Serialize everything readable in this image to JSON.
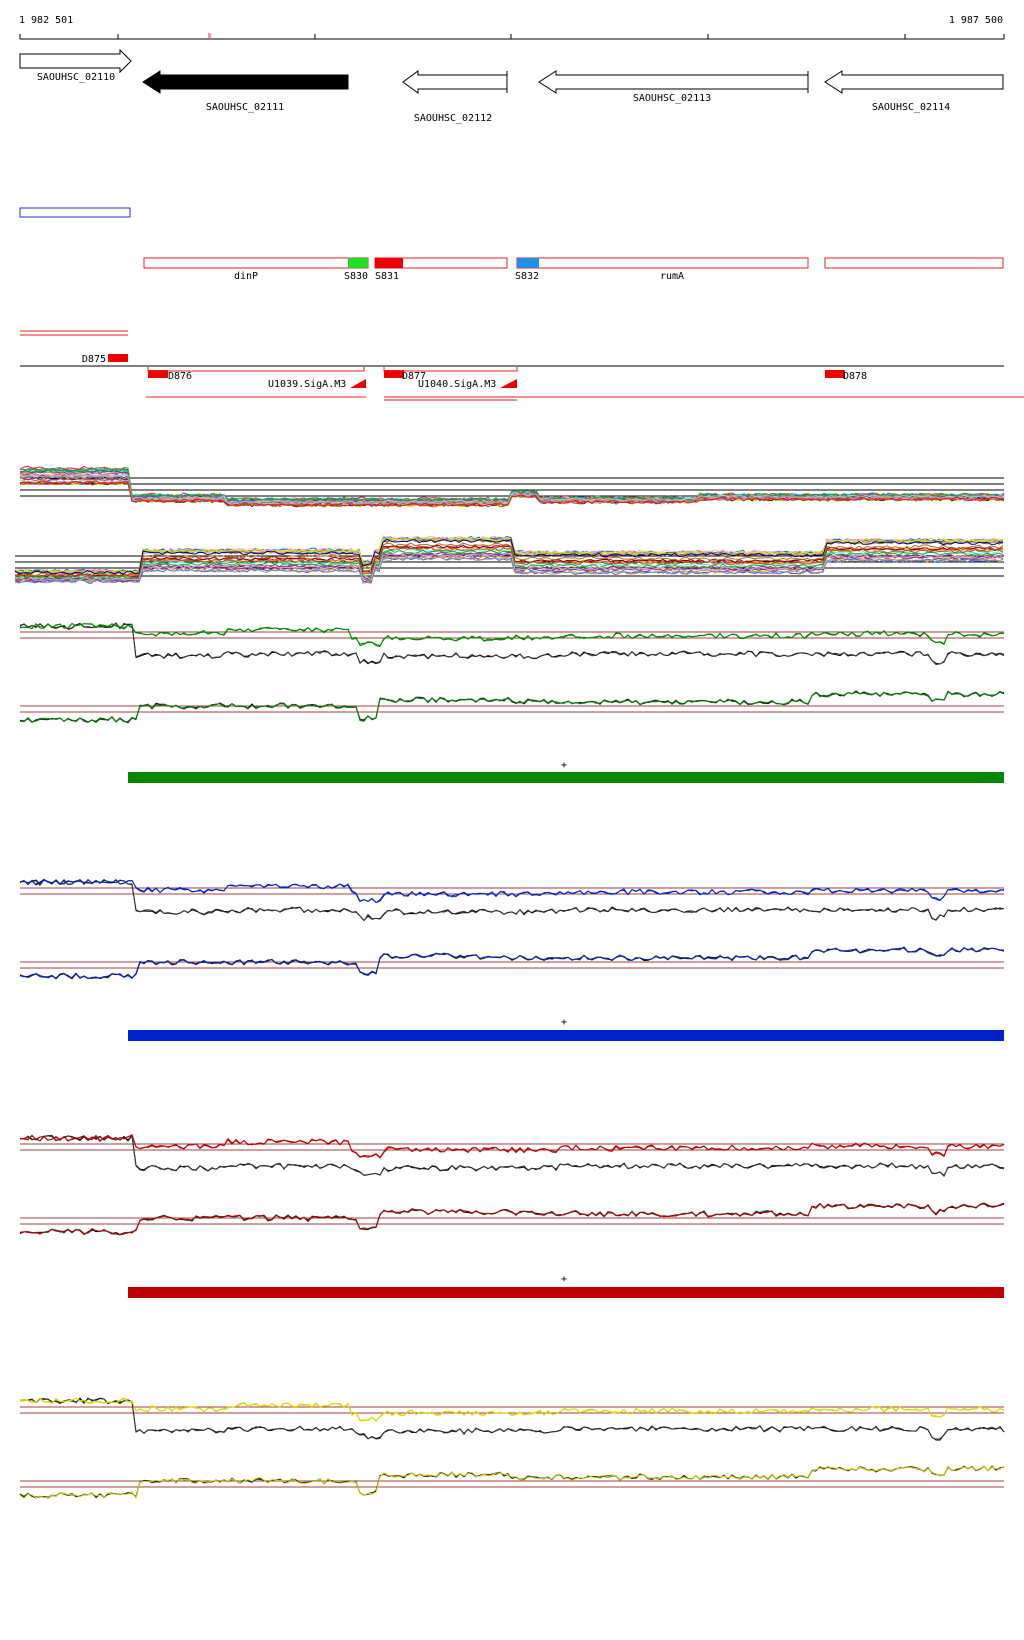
{
  "ruler": {
    "start_label": "1 982 501",
    "end_label": "1 987 500"
  },
  "genes": [
    {
      "name": "SAOUHSC_02110",
      "strand": "+",
      "fill": "#ffffff"
    },
    {
      "name": "SAOUHSC_02111",
      "strand": "-",
      "fill": "#000000"
    },
    {
      "name": "SAOUHSC_02112",
      "strand": "-",
      "fill": "#ffffff"
    },
    {
      "name": "SAOUHSC_02113",
      "strand": "-",
      "fill": "#ffffff"
    },
    {
      "name": "SAOUHSC_02114",
      "strand": "-",
      "fill": "#ffffff"
    }
  ],
  "segments": {
    "labels": [
      "dinP",
      "S830",
      "S831",
      "S832",
      "rumA"
    ],
    "colors": {
      "S830": "#22dd22",
      "S831": "#ee0000",
      "S832": "#1e90e8",
      "outline": "#ee2222"
    }
  },
  "features": {
    "markers": [
      "D875",
      "D876",
      "D877",
      "D878"
    ],
    "utrs": [
      "U1039.SigA.M3",
      "U1040.SigA.M3"
    ]
  },
  "conditions": [
    {
      "color": "#008800",
      "plus_label": "+"
    },
    {
      "color": "#0022cc",
      "plus_label": "+"
    },
    {
      "color": "#bb0000",
      "plus_label": "+"
    },
    {
      "color": "#d8d800",
      "plus_label": ""
    }
  ],
  "colors": {
    "guide_line": "#a04040",
    "overview_outline": "#2233cc"
  }
}
